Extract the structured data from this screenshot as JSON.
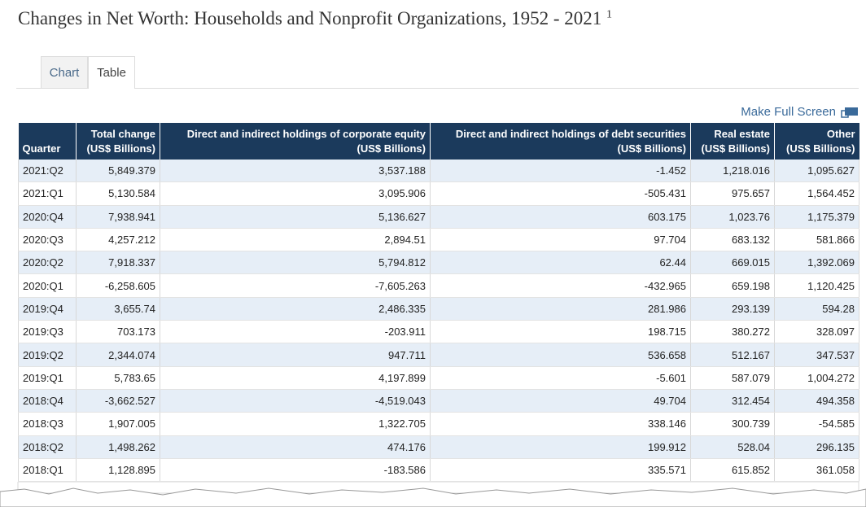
{
  "header": {
    "title": "Changes in Net Worth: Households and Nonprofit Organizations, 1952 - 2021",
    "title_note": "1"
  },
  "tabs": [
    "Chart",
    "Table"
  ],
  "full_screen_link": "Make Full Screen",
  "table": {
    "columns": [
      {
        "label": "Quarter"
      },
      {
        "label": "Total change",
        "unit": "(US$ Billions)"
      },
      {
        "label": "Direct and indirect holdings of corporate equity",
        "unit": "(US$ Billions)"
      },
      {
        "label": "Direct and indirect holdings of debt securities",
        "unit": "(US$ Billions)"
      },
      {
        "label": "Real estate",
        "unit": "(US$ Billions)"
      },
      {
        "label": "Other",
        "unit": "(US$ Billions)"
      }
    ],
    "rows": [
      [
        "2021:Q2",
        "5,849.379",
        "3,537.188",
        "-1.452",
        "1,218.016",
        "1,095.627"
      ],
      [
        "2021:Q1",
        "5,130.584",
        "3,095.906",
        "-505.431",
        "975.657",
        "1,564.452"
      ],
      [
        "2020:Q4",
        "7,938.941",
        "5,136.627",
        "603.175",
        "1,023.76",
        "1,175.379"
      ],
      [
        "2020:Q3",
        "4,257.212",
        "2,894.51",
        "97.704",
        "683.132",
        "581.866"
      ],
      [
        "2020:Q2",
        "7,918.337",
        "5,794.812",
        "62.44",
        "669.015",
        "1,392.069"
      ],
      [
        "2020:Q1",
        "-6,258.605",
        "-7,605.263",
        "-432.965",
        "659.198",
        "1,120.425"
      ],
      [
        "2019:Q4",
        "3,655.74",
        "2,486.335",
        "281.986",
        "293.139",
        "594.28"
      ],
      [
        "2019:Q3",
        "703.173",
        "-203.911",
        "198.715",
        "380.272",
        "328.097"
      ],
      [
        "2019:Q2",
        "2,344.074",
        "947.711",
        "536.658",
        "512.167",
        "347.537"
      ],
      [
        "2019:Q1",
        "5,783.65",
        "4,197.899",
        "-5.601",
        "587.079",
        "1,004.272"
      ],
      [
        "2018:Q4",
        "-3,662.527",
        "-4,519.043",
        "49.704",
        "312.454",
        "494.358"
      ],
      [
        "2018:Q3",
        "1,907.005",
        "1,322.705",
        "338.146",
        "300.739",
        "-54.585"
      ],
      [
        "2018:Q2",
        "1,498.262",
        "474.176",
        "199.912",
        "528.04",
        "296.135"
      ],
      [
        "2018:Q1",
        "1,128.895",
        "-183.586",
        "335.571",
        "615.852",
        "361.058"
      ]
    ]
  }
}
